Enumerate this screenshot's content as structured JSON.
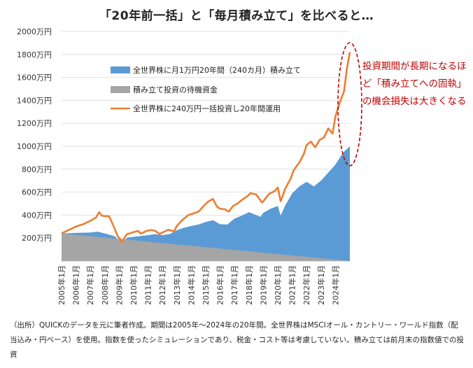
{
  "title": "「20年前一括」と「毎月積み立て」を比べると…",
  "note": "投資期間が長期になるほど「積み立てへの固執」の機会損失は大きくなる",
  "source": "（出所）QUICKのデータを元に筆者作成。期間は2005年～2024年の20年間。全世界株はMSCIオール・カントリー・ワールド指数（配当込み・円ベース）を使用。指数を使ったシミュレーションであり、税金・コスト等は考慮していない。積み立ては前月末の指数値での投資",
  "colors": {
    "accumulate": "#5b9bd5",
    "cash": "#a5a5a5",
    "lump_sum": "#ed7d31",
    "highlight": "#c00000"
  },
  "chart_data": {
    "type": "area",
    "ylim": [
      0,
      2000
    ],
    "y_ticks": [
      "200万円",
      "400万円",
      "600万円",
      "800万円",
      "1000万円",
      "1200万円",
      "1400万円",
      "1600万円",
      "1800万円",
      "2000万円"
    ],
    "y_tick_values": [
      200,
      400,
      600,
      800,
      1000,
      1200,
      1400,
      1600,
      1800,
      2000
    ],
    "x_ticks": [
      "2005年1月",
      "2006年1月",
      "2007年1月",
      "2008年1月",
      "2009年1月",
      "2010年1月",
      "2011年1月",
      "2012年1月",
      "2013年1月",
      "2014年1月",
      "2015年1月",
      "2016年1月",
      "2017年1月",
      "2018年1月",
      "2019年1月",
      "2020年1月",
      "2021年1月",
      "2022年1月",
      "2023年1月",
      "2024年1月"
    ],
    "x_range": [
      2005.0,
      2025.0
    ],
    "legend": "inside top",
    "grid": true,
    "series": [
      {
        "name": "全世界株に月1万円20年間（240カ月）積み立て",
        "kind": "area",
        "points": [
          [
            2005.0,
            240
          ],
          [
            2006.0,
            245
          ],
          [
            2007.0,
            248
          ],
          [
            2007.5,
            255
          ],
          [
            2008.0,
            240
          ],
          [
            2008.7,
            215
          ],
          [
            2009.0,
            175
          ],
          [
            2009.2,
            168
          ],
          [
            2009.6,
            205
          ],
          [
            2010.0,
            210
          ],
          [
            2010.5,
            218
          ],
          [
            2011.0,
            225
          ],
          [
            2011.5,
            235
          ],
          [
            2012.0,
            225
          ],
          [
            2012.5,
            235
          ],
          [
            2013.0,
            268
          ],
          [
            2013.5,
            290
          ],
          [
            2014.0,
            305
          ],
          [
            2014.5,
            318
          ],
          [
            2015.0,
            340
          ],
          [
            2015.5,
            355
          ],
          [
            2016.0,
            320
          ],
          [
            2016.5,
            318
          ],
          [
            2017.0,
            370
          ],
          [
            2017.5,
            395
          ],
          [
            2018.0,
            425
          ],
          [
            2018.8,
            385
          ],
          [
            2019.0,
            420
          ],
          [
            2019.5,
            455
          ],
          [
            2020.0,
            480
          ],
          [
            2020.2,
            395
          ],
          [
            2020.5,
            480
          ],
          [
            2021.0,
            590
          ],
          [
            2021.5,
            650
          ],
          [
            2022.0,
            690
          ],
          [
            2022.5,
            650
          ],
          [
            2023.0,
            700
          ],
          [
            2023.5,
            770
          ],
          [
            2024.0,
            840
          ],
          [
            2024.5,
            940
          ],
          [
            2025.0,
            1000
          ]
        ]
      },
      {
        "name": "積み立て投資の待機資金",
        "kind": "area",
        "points": [
          [
            2005.0,
            240
          ],
          [
            2025.0,
            0
          ]
        ]
      },
      {
        "name": "全世界株に240万円一括投資し20年間運用",
        "kind": "line",
        "points": [
          [
            2005.0,
            240
          ],
          [
            2005.5,
            270
          ],
          [
            2006.0,
            300
          ],
          [
            2006.5,
            320
          ],
          [
            2007.0,
            350
          ],
          [
            2007.4,
            380
          ],
          [
            2007.6,
            425
          ],
          [
            2007.8,
            395
          ],
          [
            2008.0,
            390
          ],
          [
            2008.3,
            390
          ],
          [
            2008.6,
            305
          ],
          [
            2008.9,
            215
          ],
          [
            2009.1,
            185
          ],
          [
            2009.2,
            168
          ],
          [
            2009.5,
            230
          ],
          [
            2009.9,
            248
          ],
          [
            2010.3,
            262
          ],
          [
            2010.5,
            238
          ],
          [
            2010.9,
            262
          ],
          [
            2011.2,
            270
          ],
          [
            2011.5,
            262
          ],
          [
            2011.8,
            235
          ],
          [
            2012.0,
            248
          ],
          [
            2012.4,
            272
          ],
          [
            2012.8,
            258
          ],
          [
            2013.0,
            305
          ],
          [
            2013.4,
            360
          ],
          [
            2013.8,
            400
          ],
          [
            2014.0,
            408
          ],
          [
            2014.5,
            430
          ],
          [
            2014.9,
            485
          ],
          [
            2015.2,
            520
          ],
          [
            2015.5,
            540
          ],
          [
            2015.8,
            470
          ],
          [
            2016.0,
            455
          ],
          [
            2016.3,
            452
          ],
          [
            2016.6,
            430
          ],
          [
            2016.9,
            480
          ],
          [
            2017.2,
            500
          ],
          [
            2017.6,
            540
          ],
          [
            2017.9,
            565
          ],
          [
            2018.1,
            590
          ],
          [
            2018.5,
            580
          ],
          [
            2018.9,
            510
          ],
          [
            2019.0,
            520
          ],
          [
            2019.4,
            585
          ],
          [
            2019.8,
            610
          ],
          [
            2020.0,
            640
          ],
          [
            2020.2,
            520
          ],
          [
            2020.5,
            625
          ],
          [
            2020.9,
            720
          ],
          [
            2021.1,
            790
          ],
          [
            2021.5,
            860
          ],
          [
            2021.8,
            930
          ],
          [
            2022.0,
            1010
          ],
          [
            2022.3,
            1040
          ],
          [
            2022.6,
            990
          ],
          [
            2022.9,
            1055
          ],
          [
            2023.2,
            1075
          ],
          [
            2023.5,
            1155
          ],
          [
            2023.8,
            1110
          ],
          [
            2024.0,
            1260
          ],
          [
            2024.3,
            1380
          ],
          [
            2024.6,
            1480
          ],
          [
            2024.8,
            1680
          ],
          [
            2025.0,
            1820
          ]
        ]
      }
    ]
  }
}
